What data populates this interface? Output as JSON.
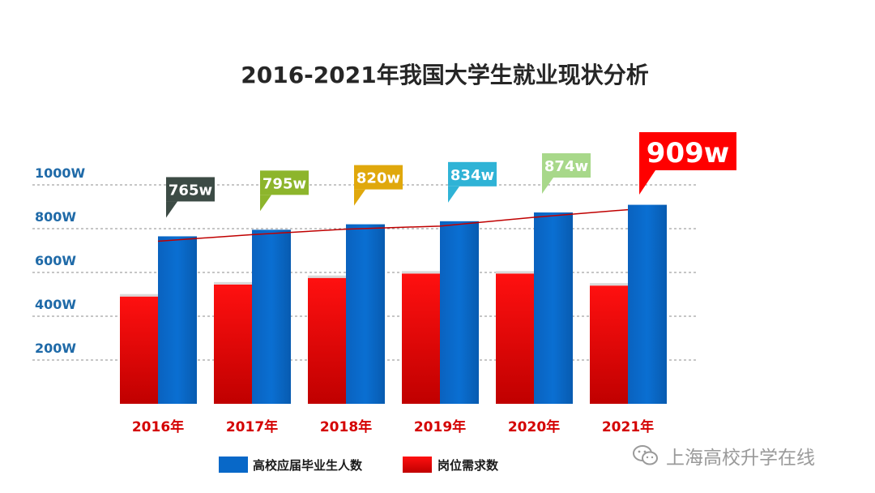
{
  "chart_data": {
    "type": "bar",
    "title": "2016-2021年我国大学生就业现状分析",
    "categories": [
      "2016年",
      "2017年",
      "2018年",
      "2019年",
      "2020年",
      "2021年"
    ],
    "y_ticks": [
      "200W",
      "400W",
      "600W",
      "800W",
      "1000W"
    ],
    "y_tick_values": [
      200,
      400,
      600,
      800,
      1000
    ],
    "ylim": [
      0,
      1000
    ],
    "series": [
      {
        "name": "岗位需求数",
        "values": [
          490,
          545,
          575,
          595,
          595,
          540
        ],
        "color": "#e00000"
      },
      {
        "name": "高校应届毕业生人数",
        "values": [
          765,
          795,
          820,
          834,
          874,
          909
        ],
        "color": "#0868c8"
      }
    ],
    "data_labels": [
      "765w",
      "795w",
      "820w",
      "834w",
      "874w",
      "909w"
    ],
    "label_colors": [
      "#3c4b45",
      "#8db52c",
      "#e0a80c",
      "#2fb3d6",
      "#a8d88a",
      "#ff0000"
    ],
    "legend_position": "bottom"
  },
  "watermark": {
    "text": "上海高校升学在线",
    "icon": "wechat-icon"
  }
}
